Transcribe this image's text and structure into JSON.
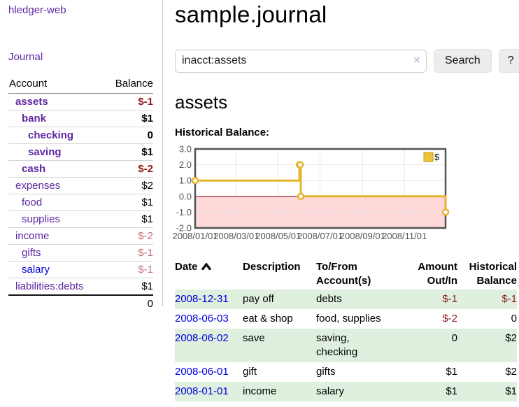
{
  "app": {
    "brand": "hledger-web",
    "nav_journal": "Journal"
  },
  "sidebar": {
    "header": {
      "account": "Account",
      "balance": "Balance"
    },
    "rows": [
      {
        "name": "assets",
        "balance": "$-1",
        "indent": 1,
        "bold": true,
        "tone": "neg-strong",
        "link": "purple"
      },
      {
        "name": "bank",
        "balance": "$1",
        "indent": 2,
        "bold": true,
        "tone": "normal",
        "link": "purple"
      },
      {
        "name": "checking",
        "balance": "0",
        "indent": 3,
        "bold": true,
        "tone": "normal",
        "link": "purple"
      },
      {
        "name": "saving",
        "balance": "$1",
        "indent": 3,
        "bold": true,
        "tone": "normal",
        "link": "purple"
      },
      {
        "name": "cash",
        "balance": "$-2",
        "indent": 2,
        "bold": true,
        "tone": "neg-strong",
        "link": "purple"
      },
      {
        "name": "expenses",
        "balance": "$2",
        "indent": 1,
        "bold": false,
        "tone": "normal",
        "link": "purple"
      },
      {
        "name": "food",
        "balance": "$1",
        "indent": 2,
        "bold": false,
        "tone": "normal",
        "link": "purple"
      },
      {
        "name": "supplies",
        "balance": "$1",
        "indent": 2,
        "bold": false,
        "tone": "normal",
        "link": "purple"
      },
      {
        "name": "income",
        "balance": "$-2",
        "indent": 1,
        "bold": false,
        "tone": "neg-soft",
        "link": "purple"
      },
      {
        "name": "gifts",
        "balance": "$-1",
        "indent": 2,
        "bold": false,
        "tone": "neg-soft",
        "link": "purple"
      },
      {
        "name": "salary",
        "balance": "$-1",
        "indent": 2,
        "bold": false,
        "tone": "neg-soft",
        "link": "blue"
      },
      {
        "name": "liabilities:debts",
        "balance": "$1",
        "indent": 1,
        "bold": false,
        "tone": "normal",
        "link": "purple"
      }
    ],
    "total": "0"
  },
  "main": {
    "title": "sample.journal",
    "search": {
      "value": "inacct:assets",
      "clear_icon": "×",
      "button": "Search",
      "help": "?"
    },
    "account_title": "assets",
    "chart_label": "Historical Balance:"
  },
  "chart_data": {
    "type": "line",
    "step": true,
    "title": "Historical Balance",
    "series": [
      {
        "name": "$",
        "x": [
          "2008-01-01",
          "2008-06-01",
          "2008-06-02",
          "2008-06-03",
          "2008-12-31"
        ],
        "y": [
          1,
          2,
          2,
          0,
          -1
        ]
      }
    ],
    "x_ticks": [
      "2008/01/01",
      "2008/03/01",
      "2008/05/01",
      "2008/07/01",
      "2008/09/01",
      "2008/11/01"
    ],
    "y_ticks": [
      3,
      2,
      1,
      0,
      -1,
      -2
    ],
    "xlim": [
      "2008-01-01",
      "2008-12-31"
    ],
    "ylim": [
      -2,
      3
    ],
    "grid": true,
    "legend": {
      "label": "$",
      "position": "top-right"
    },
    "colors": {
      "line": "#e6b52f",
      "marker_fill": "#ffffff",
      "legend_fill": "#ecc23d",
      "legend_border": "#c79810",
      "negative_region": "#ffd9d9",
      "zero_line": "#8b0000",
      "grid": "#e7e7e7",
      "border": "#545454",
      "tick_text": "#545454"
    }
  },
  "register": {
    "headers": [
      {
        "l1": "Date",
        "l2": "",
        "sort": true,
        "align": "left"
      },
      {
        "l1": "Description",
        "l2": "",
        "sort": false,
        "align": "left"
      },
      {
        "l1": "To/From",
        "l2": "Account(s)",
        "sort": false,
        "align": "left"
      },
      {
        "l1": "Amount",
        "l2": "Out/In",
        "sort": false,
        "align": "right"
      },
      {
        "l1": "Historical",
        "l2": "Balance",
        "sort": false,
        "align": "right"
      }
    ],
    "rows": [
      {
        "date": "2008-12-31",
        "description": "pay off",
        "accounts": "debts",
        "amount": "$-1",
        "balance": "$-1"
      },
      {
        "date": "2008-06-03",
        "description": "eat & shop",
        "accounts": "food, supplies",
        "amount": "$-2",
        "balance": "0"
      },
      {
        "date": "2008-06-02",
        "description": "save",
        "accounts": "saving, checking",
        "amount": "0",
        "balance": "$2"
      },
      {
        "date": "2008-06-01",
        "description": "gift",
        "accounts": "gifts",
        "amount": "$1",
        "balance": "$2"
      },
      {
        "date": "2008-01-01",
        "description": "income",
        "accounts": "salary",
        "amount": "$1",
        "balance": "$1"
      }
    ]
  }
}
